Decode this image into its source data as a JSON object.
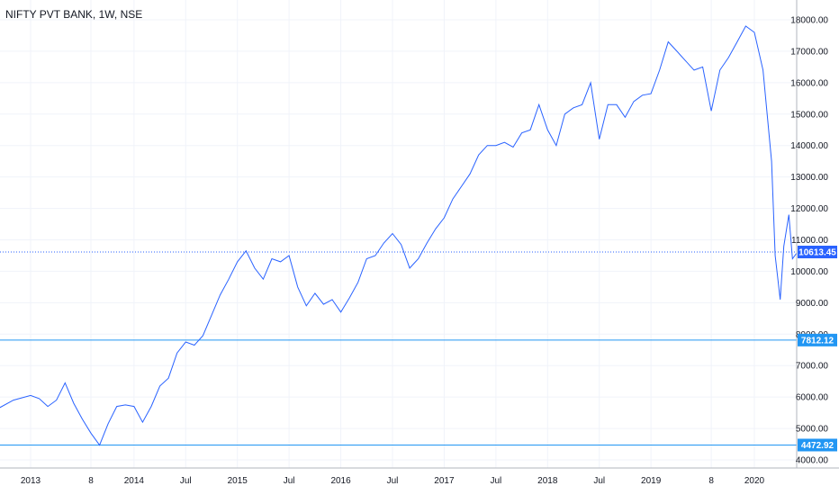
{
  "chart_data": {
    "type": "line",
    "title": "NIFTY PVT BANK, 1W, NSE",
    "ylim": [
      3700,
      18500
    ],
    "grid": true,
    "y_ticks": [
      "18000.00",
      "17000.00",
      "16000.00",
      "15000.00",
      "14000.00",
      "13000.00",
      "12000.00",
      "11000.00",
      "10000.00",
      "9000.00",
      "8000.00",
      "7000.00",
      "6000.00",
      "5000.00",
      "4000.00"
    ],
    "x_ticks": [
      {
        "label": "2013",
        "x": "2013-01"
      },
      {
        "label": "8",
        "x": "2013-08"
      },
      {
        "label": "2014",
        "x": "2014-01"
      },
      {
        "label": "Jul",
        "x": "2014-07"
      },
      {
        "label": "2015",
        "x": "2015-01"
      },
      {
        "label": "Jul",
        "x": "2015-07"
      },
      {
        "label": "2016",
        "x": "2016-01"
      },
      {
        "label": "Jul",
        "x": "2016-07"
      },
      {
        "label": "2017",
        "x": "2017-01"
      },
      {
        "label": "Jul",
        "x": "2017-07"
      },
      {
        "label": "2018",
        "x": "2018-01"
      },
      {
        "label": "Jul",
        "x": "2018-07"
      },
      {
        "label": "2019",
        "x": "2019-01"
      },
      {
        "label": "8",
        "x": "2019-08"
      },
      {
        "label": "2020",
        "x": "2020-01"
      }
    ],
    "series": [
      {
        "color": "#2962ff",
        "x": [
          "2012-07",
          "2012-09",
          "2012-11",
          "2013-01",
          "2013-02",
          "2013-03",
          "2013-04",
          "2013-05",
          "2013-06",
          "2013-07",
          "2013-08",
          "2013-09",
          "2013-10",
          "2013-11",
          "2013-12",
          "2014-01",
          "2014-02",
          "2014-03",
          "2014-04",
          "2014-05",
          "2014-06",
          "2014-07",
          "2014-08",
          "2014-09",
          "2014-10",
          "2014-11",
          "2014-12",
          "2015-01",
          "2015-02",
          "2015-03",
          "2015-04",
          "2015-05",
          "2015-06",
          "2015-07",
          "2015-08",
          "2015-09",
          "2015-10",
          "2015-11",
          "2015-12",
          "2016-01",
          "2016-02",
          "2016-03",
          "2016-04",
          "2016-05",
          "2016-06",
          "2016-07",
          "2016-08",
          "2016-09",
          "2016-10",
          "2016-11",
          "2016-12",
          "2017-01",
          "2017-02",
          "2017-03",
          "2017-04",
          "2017-05",
          "2017-06",
          "2017-07",
          "2017-08",
          "2017-09",
          "2017-10",
          "2017-11",
          "2017-12",
          "2018-01",
          "2018-02",
          "2018-03",
          "2018-04",
          "2018-05",
          "2018-06",
          "2018-07",
          "2018-08",
          "2018-09",
          "2018-10",
          "2018-11",
          "2018-12",
          "2019-01",
          "2019-02",
          "2019-03",
          "2019-04",
          "2019-05",
          "2019-06",
          "2019-07",
          "2019-08",
          "2019-09",
          "2019-10",
          "2019-11",
          "2019-12",
          "2020-01",
          "2020-02",
          "2020-03",
          "2020-03",
          "2020-04",
          "2020-04",
          "2020-05",
          "2020-05",
          "2020-06"
        ],
        "y": [
          5350,
          5600,
          5900,
          6050,
          5950,
          5700,
          5900,
          6450,
          5800,
          5300,
          4850,
          4470,
          5150,
          5700,
          5750,
          5700,
          5200,
          5700,
          6350,
          6600,
          7400,
          7750,
          7650,
          7950,
          8600,
          9250,
          9750,
          10300,
          10650,
          10100,
          9750,
          10400,
          10300,
          10500,
          9500,
          8900,
          9300,
          8950,
          9100,
          8700,
          9150,
          9650,
          10400,
          10500,
          10900,
          11200,
          10850,
          10100,
          10400,
          10900,
          11350,
          11700,
          12300,
          12700,
          13100,
          13700,
          14000,
          14000,
          14100,
          13950,
          14400,
          14500,
          15300,
          14500,
          14000,
          15000,
          15200,
          15300,
          16000,
          14200,
          15300,
          15300,
          14900,
          15400,
          15600,
          15650,
          16400,
          17300,
          17000,
          16700,
          16400,
          16500,
          15100,
          16400,
          16800,
          17300,
          17800,
          17600,
          16400,
          13500,
          10500,
          9100,
          10800,
          11800,
          10400,
          10613
        ]
      }
    ],
    "price_lines": [
      {
        "label": "10613.45",
        "value": 10613.45,
        "style": "dotted",
        "color": "#2962ff"
      },
      {
        "label": "7812.12",
        "value": 7812.12,
        "style": "solid",
        "color": "#2196f3"
      },
      {
        "label": "4472.92",
        "value": 4472.92,
        "style": "solid",
        "color": "#2196f3"
      }
    ],
    "x_range": [
      "2012-07",
      "2020-06"
    ]
  }
}
